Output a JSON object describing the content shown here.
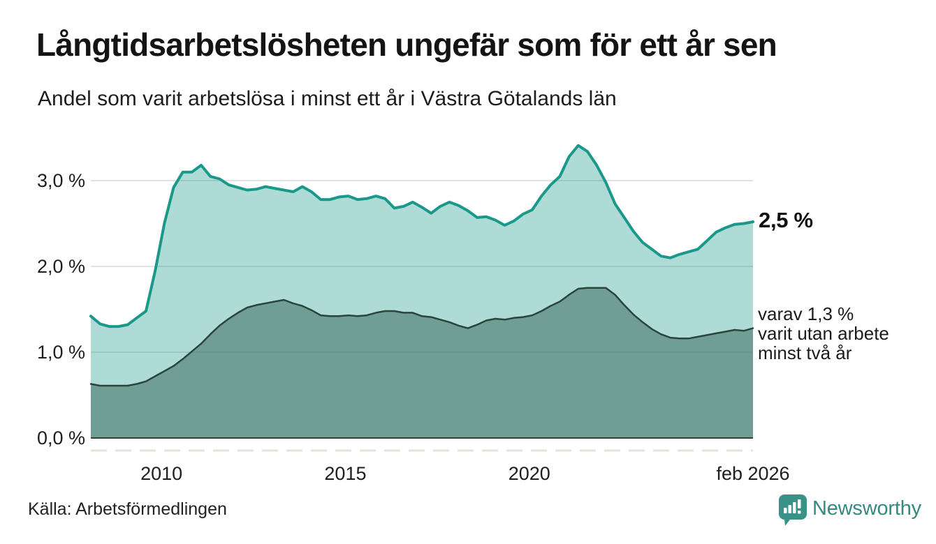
{
  "header": {
    "title": "Långtidsarbetslösheten ungefär som för ett år sen",
    "subtitle": "Andel som varit arbetslösa i minst ett år i Västra Götalands län"
  },
  "footer": {
    "source": "Källa: Arbetsförmedlingen",
    "brand": "Newsworthy"
  },
  "colors": {
    "accent_teal": "#1a998a",
    "light_fill": "rgba(26,153,138,0.35)",
    "dark_line": "#2b443e",
    "dark_fill": "rgba(61,107,97,0.55)",
    "grid": "#d8d8d8",
    "axis": "#33403c",
    "tick_dashes": "#e7e3d9",
    "text": "#1e1e1e",
    "brand_teal": "#35897f"
  },
  "chart_data": {
    "type": "area",
    "title": "Långtidsarbetslösheten ungefär som för ett år sen",
    "subtitle": "Andel som varit arbetslösa i minst ett år i Västra Götalands län",
    "xlabel": "",
    "ylabel": "",
    "xlim": [
      2008.08,
      2026.08
    ],
    "ylim": [
      0,
      3.52
    ],
    "grid": "horizontal",
    "legend": "none",
    "x": [
      2008.08,
      2008.33,
      2008.58,
      2008.83,
      2009.08,
      2009.33,
      2009.58,
      2009.83,
      2010.08,
      2010.33,
      2010.58,
      2010.83,
      2011.08,
      2011.33,
      2011.58,
      2011.83,
      2012.08,
      2012.33,
      2012.58,
      2012.83,
      2013.08,
      2013.33,
      2013.58,
      2013.83,
      2014.08,
      2014.33,
      2014.58,
      2014.83,
      2015.08,
      2015.33,
      2015.58,
      2015.83,
      2016.08,
      2016.33,
      2016.58,
      2016.83,
      2017.08,
      2017.33,
      2017.58,
      2017.83,
      2018.08,
      2018.33,
      2018.58,
      2018.83,
      2019.08,
      2019.33,
      2019.58,
      2019.83,
      2020.08,
      2020.33,
      2020.58,
      2020.83,
      2021.08,
      2021.33,
      2021.58,
      2021.83,
      2022.08,
      2022.33,
      2022.58,
      2022.83,
      2023.08,
      2023.33,
      2023.58,
      2023.83,
      2024.08,
      2024.33,
      2024.58,
      2024.83,
      2025.08,
      2025.33,
      2025.58,
      2025.83,
      2026.08
    ],
    "series": [
      {
        "name": "Arbetslösa minst ett år",
        "end_label": "2,5 %",
        "line_color": "#1a998a",
        "fill": "rgba(26,153,138,0.35)",
        "line_width": 4,
        "values": [
          1.42,
          1.33,
          1.3,
          1.3,
          1.32,
          1.4,
          1.48,
          1.95,
          2.5,
          2.92,
          3.1,
          3.1,
          3.18,
          3.05,
          3.02,
          2.95,
          2.92,
          2.89,
          2.9,
          2.93,
          2.91,
          2.89,
          2.87,
          2.93,
          2.87,
          2.78,
          2.78,
          2.81,
          2.82,
          2.78,
          2.79,
          2.82,
          2.79,
          2.68,
          2.7,
          2.75,
          2.69,
          2.62,
          2.7,
          2.75,
          2.71,
          2.65,
          2.57,
          2.58,
          2.54,
          2.48,
          2.53,
          2.61,
          2.66,
          2.82,
          2.95,
          3.05,
          3.28,
          3.41,
          3.34,
          3.18,
          2.98,
          2.73,
          2.57,
          2.41,
          2.28,
          2.2,
          2.12,
          2.1,
          2.14,
          2.17,
          2.2,
          2.3,
          2.4,
          2.45,
          2.49,
          2.5,
          2.52
        ]
      },
      {
        "name": "Utan arbete minst två år",
        "end_label": "1,3 %",
        "line_color": "#2b443e",
        "fill": "rgba(61,107,97,0.55)",
        "line_width": 2.5,
        "values": [
          0.63,
          0.61,
          0.61,
          0.61,
          0.61,
          0.63,
          0.66,
          0.72,
          0.78,
          0.84,
          0.92,
          1.01,
          1.1,
          1.21,
          1.31,
          1.39,
          1.46,
          1.52,
          1.55,
          1.57,
          1.59,
          1.61,
          1.57,
          1.54,
          1.49,
          1.43,
          1.42,
          1.42,
          1.43,
          1.42,
          1.43,
          1.46,
          1.48,
          1.48,
          1.46,
          1.46,
          1.42,
          1.41,
          1.38,
          1.35,
          1.31,
          1.28,
          1.32,
          1.37,
          1.39,
          1.38,
          1.4,
          1.41,
          1.43,
          1.48,
          1.54,
          1.59,
          1.67,
          1.74,
          1.75,
          1.75,
          1.75,
          1.67,
          1.55,
          1.44,
          1.35,
          1.27,
          1.21,
          1.17,
          1.16,
          1.16,
          1.18,
          1.2,
          1.22,
          1.24,
          1.26,
          1.25,
          1.28
        ]
      }
    ],
    "xticks": [
      {
        "x": 2010,
        "label": "2010"
      },
      {
        "x": 2015,
        "label": "2015"
      },
      {
        "x": 2020,
        "label": "2020"
      },
      {
        "x": 2026.08,
        "label": "feb 2026"
      }
    ],
    "yticks": [
      {
        "y": 0,
        "label": "0,0 %"
      },
      {
        "y": 1,
        "label": "1,0 %"
      },
      {
        "y": 2,
        "label": "2,0 %"
      },
      {
        "y": 3,
        "label": "3,0 %"
      }
    ],
    "annotations": {
      "end_value_primary": "2,5 %",
      "secondary_lines": [
        "varav 1,3 %",
        "varit utan arbete",
        "minst två år"
      ]
    }
  }
}
